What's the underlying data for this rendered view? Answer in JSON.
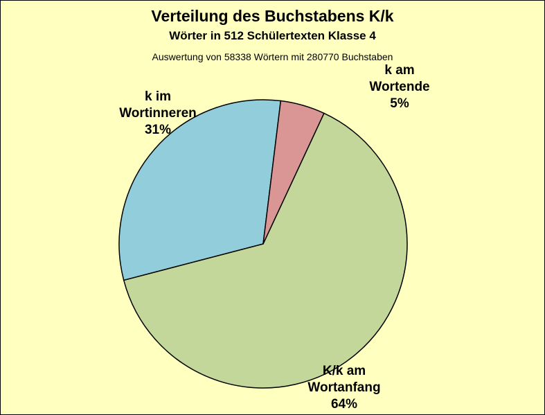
{
  "chart_data": {
    "type": "pie",
    "title": "Verteilung des Buchstabens K/k",
    "subtitle": "Wörter in 512 Schülertexten Klasse 4",
    "note": "Auswertung von 58338 Wörtern mit 280770 Buchstaben",
    "slices": [
      {
        "label_lines": [
          "K/k am",
          "Wortanfang",
          "64%"
        ],
        "value": 64,
        "color": "#c4d79b"
      },
      {
        "label_lines": [
          "k im",
          "Wortinneren",
          "31%"
        ],
        "value": 31,
        "color": "#92cddc"
      },
      {
        "label_lines": [
          "k am",
          "Wortende",
          "5%"
        ],
        "value": 5,
        "color": "#da9694"
      }
    ]
  }
}
